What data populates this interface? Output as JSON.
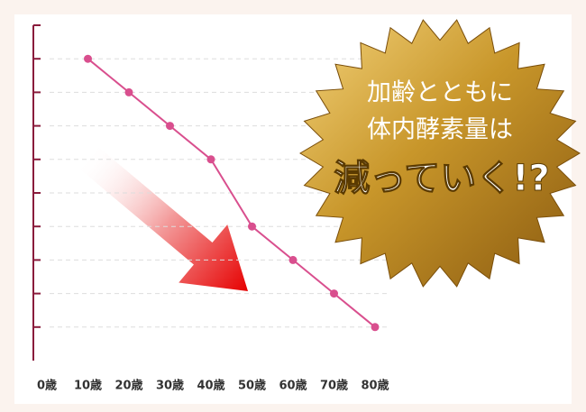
{
  "chart_data": {
    "type": "line",
    "categories": [
      "0歳",
      "10歳",
      "20歳",
      "30歳",
      "40歳",
      "50歳",
      "60歳",
      "70歳",
      "80歳"
    ],
    "values": [
      null,
      8,
      7,
      6,
      5,
      3,
      2,
      1,
      0
    ],
    "color": "#d94f8e",
    "ylim": [
      -1,
      9
    ],
    "yticks": [
      0,
      1,
      2,
      3,
      4,
      5,
      6,
      7,
      8
    ],
    "grid": true,
    "annotations": [
      "加齢とともに",
      "体内酵素量は",
      "減っていく!?"
    ]
  }
}
